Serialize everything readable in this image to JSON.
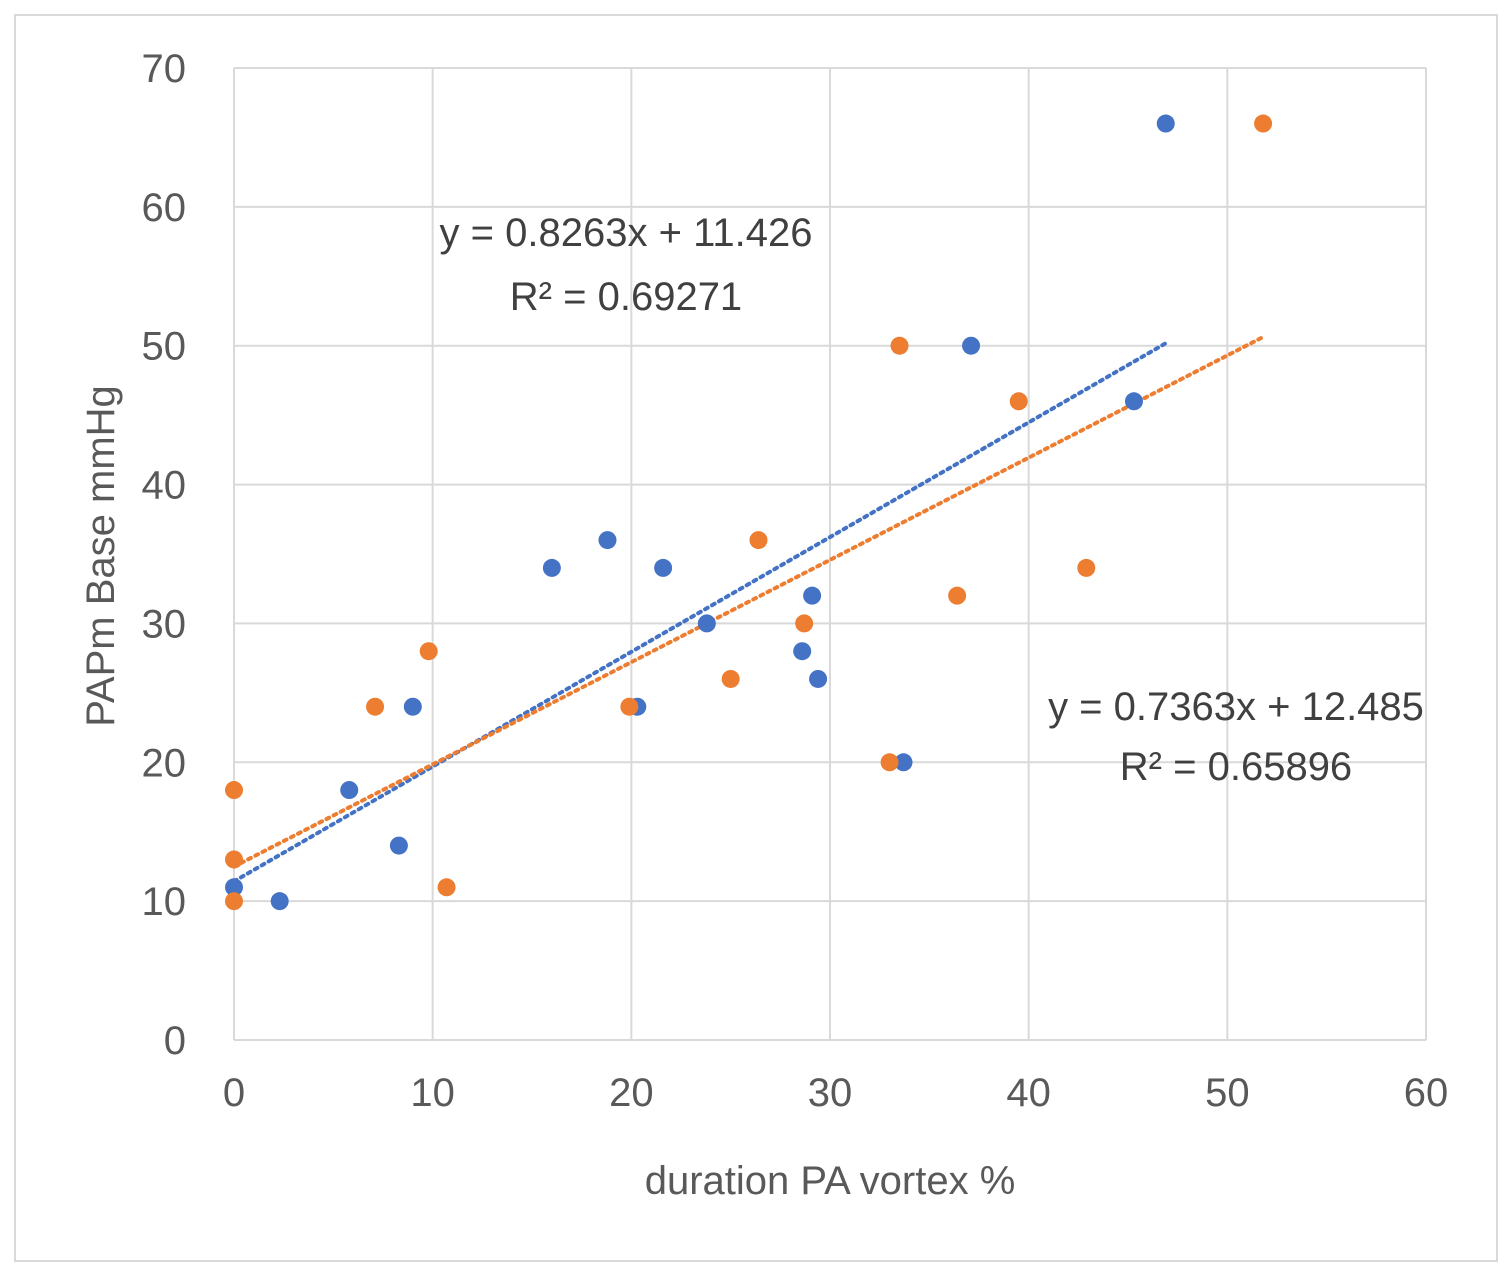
{
  "chart_data": {
    "type": "scatter",
    "title": "",
    "xlabel": "duration PA vortex %",
    "ylabel": "PAPm Base mmHg",
    "xlim": [
      0,
      60
    ],
    "ylim": [
      0,
      70
    ],
    "x_ticks": [
      0,
      10,
      20,
      30,
      40,
      50,
      60
    ],
    "y_ticks": [
      0,
      10,
      20,
      30,
      40,
      50,
      60,
      70
    ],
    "grid": true,
    "legend": "none",
    "series": [
      {
        "name": "series-blue",
        "color": "#4472C4",
        "points": [
          {
            "x": 0,
            "y": 11
          },
          {
            "x": 2.3,
            "y": 10
          },
          {
            "x": 5.8,
            "y": 18
          },
          {
            "x": 8.3,
            "y": 14
          },
          {
            "x": 9,
            "y": 24
          },
          {
            "x": 16,
            "y": 34
          },
          {
            "x": 18.8,
            "y": 36
          },
          {
            "x": 20.3,
            "y": 24
          },
          {
            "x": 21.6,
            "y": 34
          },
          {
            "x": 23.8,
            "y": 30
          },
          {
            "x": 28.6,
            "y": 28
          },
          {
            "x": 29.1,
            "y": 32
          },
          {
            "x": 29.4,
            "y": 26
          },
          {
            "x": 33.7,
            "y": 20
          },
          {
            "x": 37.1,
            "y": 50
          },
          {
            "x": 45.3,
            "y": 46
          },
          {
            "x": 46.9,
            "y": 66
          }
        ],
        "trendline": {
          "slope": 0.8263,
          "intercept": 11.426,
          "x_range": [
            0,
            46.9
          ],
          "equation": "y = 0.8263x + 11.426",
          "r2": "R² = 0.69271"
        }
      },
      {
        "name": "series-orange",
        "color": "#ED7D31",
        "points": [
          {
            "x": 0,
            "y": 18
          },
          {
            "x": 0,
            "y": 13
          },
          {
            "x": 0,
            "y": 10
          },
          {
            "x": 7.1,
            "y": 24
          },
          {
            "x": 9.8,
            "y": 28
          },
          {
            "x": 10.7,
            "y": 11
          },
          {
            "x": 19.9,
            "y": 24
          },
          {
            "x": 25,
            "y": 26
          },
          {
            "x": 26.4,
            "y": 36
          },
          {
            "x": 28.7,
            "y": 30
          },
          {
            "x": 33,
            "y": 20
          },
          {
            "x": 33.5,
            "y": 50
          },
          {
            "x": 36.4,
            "y": 32
          },
          {
            "x": 39.5,
            "y": 46
          },
          {
            "x": 42.9,
            "y": 34
          },
          {
            "x": 51.8,
            "y": 66
          }
        ],
        "trendline": {
          "slope": 0.7363,
          "intercept": 12.485,
          "x_range": [
            0,
            51.8
          ],
          "equation": "y = 0.7363x + 12.485",
          "r2": "R² = 0.65896"
        }
      }
    ]
  }
}
